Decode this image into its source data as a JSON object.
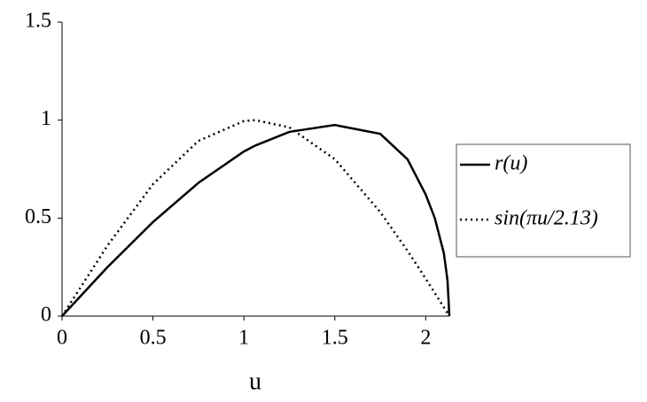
{
  "chart_data": {
    "type": "line",
    "x_label": "u",
    "x": [
      0,
      0.25,
      0.5,
      0.75,
      1,
      1.0625,
      1.25,
      1.5,
      1.75,
      1.9,
      2,
      2.05,
      2.1,
      2.12,
      2.13
    ],
    "series": [
      {
        "name": "r(u)",
        "color": "#000000",
        "dash": "solid",
        "values": [
          0,
          0.25,
          0.48,
          0.68,
          0.84,
          0.87,
          0.94,
          0.975,
          0.93,
          0.8,
          0.62,
          0.5,
          0.32,
          0.18,
          0
        ]
      },
      {
        "name": "sin(πu/2.13)",
        "color": "#000000",
        "dash": "dotted",
        "values": [
          0,
          0.36,
          0.673,
          0.894,
          0.995,
          1.0,
          0.963,
          0.801,
          0.531,
          0.333,
          0.191,
          0.118,
          0.044,
          0.015,
          0
        ]
      }
    ],
    "xlim": [
      0,
      2.13
    ],
    "ylim": [
      0,
      1.5
    ],
    "xticks": [
      0,
      0.5,
      1,
      1.5,
      2
    ],
    "yticks": [
      0,
      0.5,
      1,
      1.5
    ],
    "grid": false,
    "legend": "right"
  }
}
